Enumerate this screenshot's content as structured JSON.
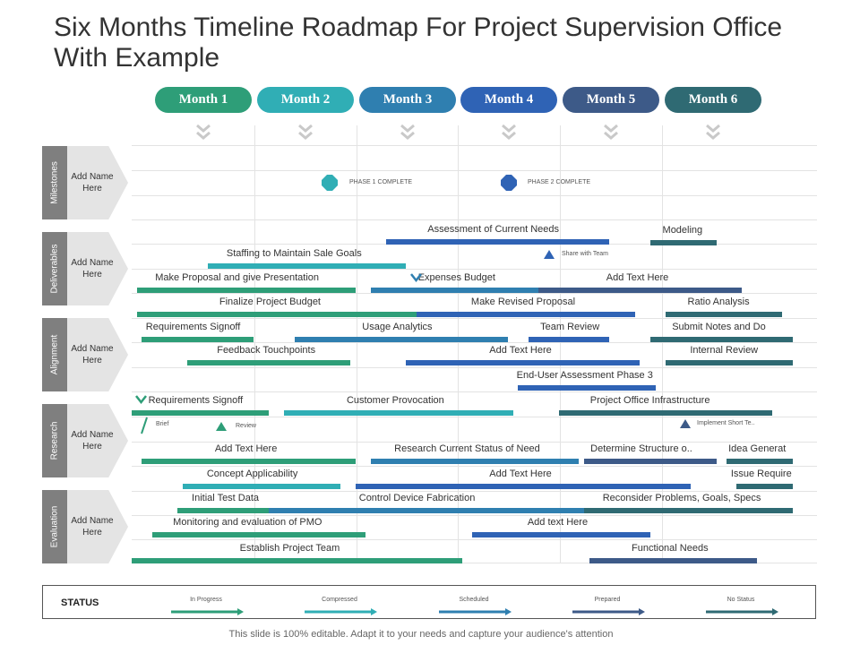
{
  "title": "Six Months Timeline Roadmap For Project Supervision Office With Example",
  "months": [
    {
      "label": "Month 1",
      "color": "#2e9e78"
    },
    {
      "label": "Month 2",
      "color": "#30aeb5"
    },
    {
      "label": "Month 3",
      "color": "#2f7fb0"
    },
    {
      "label": "Month 4",
      "color": "#2f63b5"
    },
    {
      "label": "Month 5",
      "color": "#3d5a88"
    },
    {
      "label": "Month 6",
      "color": "#2f6a73"
    }
  ],
  "chevron_icon": "double-chevron-down-icon",
  "sections": [
    {
      "label": "Milestones",
      "name": "Add Name Here"
    },
    {
      "label": "Deliverables",
      "name": "Add Name Here"
    },
    {
      "label": "Alignment",
      "name": "Add Name Here"
    },
    {
      "label": "Research",
      "name": "Add Name Here"
    },
    {
      "label": "Evaluation",
      "name": "Add Name Here"
    }
  ],
  "milestones": [
    {
      "label": "PHASE 1 COMPLETE",
      "color": "#30aeb5"
    },
    {
      "label": "PHASE 2 COMPLETE",
      "color": "#2f63b5"
    }
  ],
  "tasks": [
    {
      "label": "Assessment of Current Needs",
      "start": 2.5,
      "end": 4.7,
      "color": "#2f63b5"
    },
    {
      "label": "Modeling",
      "start": 5.1,
      "end": 5.75,
      "color": "#2f6a73"
    },
    {
      "label": "Staffing to Maintain Sale Goals",
      "start": 0.75,
      "end": 2.7,
      "color": "#30aeb5"
    },
    {
      "label": "Make Proposal and give Presentation",
      "start": 0.05,
      "end": 2.2,
      "color": "#2e9e78"
    },
    {
      "label": "Expenses Budget",
      "start": 2.35,
      "end": 4.05,
      "color": "#2f7fb0"
    },
    {
      "label": "Add Text Here",
      "start": 4.0,
      "end": 6.0,
      "color": "#3d5a88"
    },
    {
      "label": "Finalize Project Budget",
      "start": 0.05,
      "end": 2.85,
      "color": "#2e9e78"
    },
    {
      "label": "Make Revised Proposal",
      "start": 2.8,
      "end": 4.95,
      "color": "#2f63b5"
    },
    {
      "label": "Ratio Analysis",
      "start": 5.25,
      "end": 6.4,
      "color": "#2f6a73"
    },
    {
      "label": "Requirements Signoff",
      "start": 0.1,
      "end": 1.2,
      "color": "#2e9e78"
    },
    {
      "label": "Usage Analytics",
      "start": 1.6,
      "end": 3.7,
      "color": "#2f7fb0"
    },
    {
      "label": "Team Review",
      "start": 3.9,
      "end": 4.7,
      "color": "#2f63b5"
    },
    {
      "label": "Submit Notes and Do",
      "start": 5.1,
      "end": 6.5,
      "color": "#2f6a73"
    },
    {
      "label": "Feedback Touchpoints",
      "start": 0.55,
      "end": 2.15,
      "color": "#2e9e78"
    },
    {
      "label": "Add Text Here",
      "start": 2.7,
      "end": 5.0,
      "color": "#2f63b5"
    },
    {
      "label": "Internal Review",
      "start": 5.25,
      "end": 6.5,
      "color": "#2f6a73"
    },
    {
      "label": "End-User Assessment Phase 3",
      "start": 3.8,
      "end": 5.15,
      "color": "#2f63b5"
    },
    {
      "label": "Requirements Signoff",
      "start": 0.0,
      "end": 1.35,
      "color": "#2e9e78"
    },
    {
      "label": "Customer Provocation",
      "start": 1.5,
      "end": 3.75,
      "color": "#30aeb5"
    },
    {
      "label": "Project Office Infrastructure",
      "start": 4.2,
      "end": 6.3,
      "color": "#2f6a73"
    },
    {
      "label": "Add Text Here",
      "start": 0.1,
      "end": 2.2,
      "color": "#2e9e78"
    },
    {
      "label": "Research Current Status of Need",
      "start": 2.35,
      "end": 4.4,
      "color": "#2f7fb0"
    },
    {
      "label": "Determine Structure o..",
      "start": 4.45,
      "end": 5.75,
      "color": "#3d5a88"
    },
    {
      "label": "Idea Generat",
      "start": 5.85,
      "end": 6.5,
      "color": "#2f6a73"
    },
    {
      "label": "Concept Applicability",
      "start": 0.5,
      "end": 2.05,
      "color": "#30aeb5"
    },
    {
      "label": "Add Text Here",
      "start": 2.2,
      "end": 5.5,
      "color": "#2f63b5"
    },
    {
      "label": "Issue Require",
      "start": 5.95,
      "end": 6.5,
      "color": "#2f6a73"
    },
    {
      "label": "Initial Test Data",
      "start": 0.45,
      "end": 1.6,
      "color": "#2e9e78"
    },
    {
      "label": "Control Device Fabrication",
      "start": 1.35,
      "end": 4.45,
      "color": "#2f7fb0"
    },
    {
      "label": "Reconsider Problems, Goals, Specs",
      "start": 4.45,
      "end": 6.5,
      "color": "#2f6a73"
    },
    {
      "label": "Monitoring and evaluation of  PMO",
      "start": 0.2,
      "end": 2.3,
      "color": "#2e9e78"
    },
    {
      "label": "Add text Here",
      "start": 3.35,
      "end": 5.1,
      "color": "#2f63b5"
    },
    {
      "label": "Establish Project Team",
      "start": 0.0,
      "end": 3.25,
      "color": "#2e9e78"
    },
    {
      "label": "Functional Needs",
      "start": 4.5,
      "end": 6.15,
      "color": "#3d5a88"
    }
  ],
  "notes": [
    {
      "label": "Share  with Team",
      "icon": "triangle-icon",
      "color": "#2f63b5"
    },
    {
      "label": "Brief",
      "icon": "slash-icon",
      "color": "#2e9e78"
    },
    {
      "label": "Review",
      "icon": "triangle-icon",
      "color": "#2e9e78"
    },
    {
      "label": "Implement  Short Te..",
      "icon": "triangle-icon",
      "color": "#3d5a88"
    }
  ],
  "check_icons": [
    {
      "icon": "check-chevron-icon",
      "color": "#2f7fb0"
    },
    {
      "icon": "check-chevron-icon",
      "color": "#2e9e78"
    }
  ],
  "status": {
    "title": "STATUS",
    "items": [
      {
        "label": "In Progress",
        "color": "#2e9e78"
      },
      {
        "label": "Compressed",
        "color": "#30aeb5"
      },
      {
        "label": "Scheduled",
        "color": "#2f7fb0"
      },
      {
        "label": "Prepared",
        "color": "#3d5a88"
      },
      {
        "label": "No Status",
        "color": "#2f6a73"
      }
    ]
  },
  "footer": "This slide is 100% editable. Adapt it to your needs and capture your audience's attention"
}
